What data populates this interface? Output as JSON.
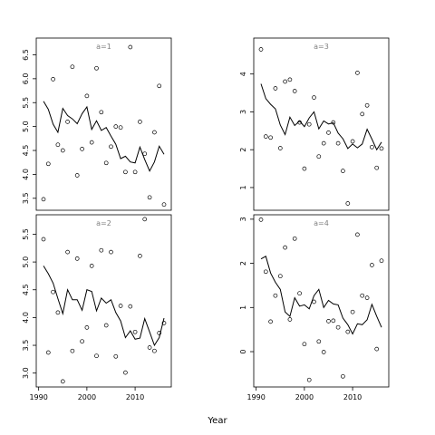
{
  "chart_data": {
    "type": "scatter",
    "xlabel": "Year",
    "panels": [
      {
        "label": "a=1",
        "ylim": [
          3.25,
          6.85
        ],
        "yticks": [
          3.5,
          4.0,
          4.5,
          5.0,
          5.5,
          6.0,
          6.5
        ],
        "ytick_labels": [
          "3.5",
          "4.0",
          "4.5",
          "5.0",
          "5.5",
          "6.0",
          "6.5"
        ],
        "points": [
          [
            1991,
            3.48
          ],
          [
            1992,
            4.22
          ],
          [
            1993,
            5.99
          ],
          [
            1994,
            4.62
          ],
          [
            1995,
            4.5
          ],
          [
            1996,
            5.1
          ],
          [
            1997,
            6.25
          ],
          [
            1998,
            3.98
          ],
          [
            1999,
            4.53
          ],
          [
            2000,
            5.64
          ],
          [
            2001,
            4.67
          ],
          [
            2002,
            6.22
          ],
          [
            2003,
            5.3
          ],
          [
            2004,
            4.24
          ],
          [
            2005,
            4.58
          ],
          [
            2006,
            5.0
          ],
          [
            2007,
            4.98
          ],
          [
            2008,
            4.05
          ],
          [
            2009,
            6.66
          ],
          [
            2010,
            4.05
          ],
          [
            2011,
            5.1
          ],
          [
            2012,
            4.43
          ],
          [
            2013,
            3.52
          ],
          [
            2014,
            4.88
          ],
          [
            2015,
            5.85
          ],
          [
            2016,
            3.37
          ]
        ],
        "line": [
          [
            1991,
            5.53
          ],
          [
            1992,
            5.36
          ],
          [
            1993,
            5.05
          ],
          [
            1994,
            4.88
          ],
          [
            1995,
            5.38
          ],
          [
            1996,
            5.23
          ],
          [
            1997,
            5.16
          ],
          [
            1998,
            5.06
          ],
          [
            1999,
            5.27
          ],
          [
            2000,
            5.41
          ],
          [
            2001,
            4.94
          ],
          [
            2002,
            5.12
          ],
          [
            2003,
            4.92
          ],
          [
            2004,
            4.98
          ],
          [
            2005,
            4.8
          ],
          [
            2006,
            4.63
          ],
          [
            2007,
            4.33
          ],
          [
            2008,
            4.38
          ],
          [
            2009,
            4.26
          ],
          [
            2010,
            4.24
          ],
          [
            2011,
            4.57
          ],
          [
            2012,
            4.31
          ],
          [
            2013,
            4.07
          ],
          [
            2014,
            4.26
          ],
          [
            2015,
            4.59
          ],
          [
            2016,
            4.42
          ]
        ]
      },
      {
        "label": "a=3",
        "ylim": [
          0.4,
          4.95
        ],
        "yticks": [
          1,
          2,
          3,
          4
        ],
        "ytick_labels": [
          "1",
          "2",
          "3",
          "4"
        ],
        "points": [
          [
            1991,
            4.65
          ],
          [
            1992,
            2.35
          ],
          [
            1993,
            2.32
          ],
          [
            1994,
            3.62
          ],
          [
            1995,
            2.04
          ],
          [
            1996,
            3.8
          ],
          [
            1997,
            3.85
          ],
          [
            1998,
            3.55
          ],
          [
            1999,
            2.72
          ],
          [
            2000,
            1.5
          ],
          [
            2001,
            2.67
          ],
          [
            2002,
            3.38
          ],
          [
            2003,
            1.82
          ],
          [
            2004,
            2.17
          ],
          [
            2005,
            2.45
          ],
          [
            2006,
            2.72
          ],
          [
            2007,
            2.17
          ],
          [
            2008,
            1.44
          ],
          [
            2009,
            0.58
          ],
          [
            2010,
            2.22
          ],
          [
            2011,
            4.03
          ],
          [
            2012,
            2.94
          ],
          [
            2013,
            3.17
          ],
          [
            2014,
            2.07
          ],
          [
            2015,
            1.52
          ],
          [
            2016,
            2.03
          ]
        ],
        "line": [
          [
            1991,
            3.74
          ],
          [
            1992,
            3.35
          ],
          [
            1993,
            3.2
          ],
          [
            1994,
            3.08
          ],
          [
            1995,
            2.65
          ],
          [
            1996,
            2.4
          ],
          [
            1997,
            2.86
          ],
          [
            1998,
            2.64
          ],
          [
            1999,
            2.76
          ],
          [
            2000,
            2.61
          ],
          [
            2001,
            2.84
          ],
          [
            2002,
            3.0
          ],
          [
            2003,
            2.55
          ],
          [
            2004,
            2.76
          ],
          [
            2005,
            2.68
          ],
          [
            2006,
            2.71
          ],
          [
            2007,
            2.44
          ],
          [
            2008,
            2.29
          ],
          [
            2009,
            2.03
          ],
          [
            2010,
            2.15
          ],
          [
            2011,
            2.05
          ],
          [
            2012,
            2.15
          ],
          [
            2013,
            2.54
          ],
          [
            2014,
            2.28
          ],
          [
            2015,
            2.0
          ],
          [
            2016,
            2.2
          ]
        ]
      },
      {
        "label": "a=2",
        "ylim": [
          2.75,
          5.85
        ],
        "yticks": [
          3.0,
          3.5,
          4.0,
          4.5,
          5.0,
          5.5
        ],
        "ytick_labels": [
          "3.0",
          "3.5",
          "4.0",
          "4.5",
          "5.0",
          "5.5"
        ],
        "points": [
          [
            1991,
            5.41
          ],
          [
            1992,
            3.37
          ],
          [
            1993,
            4.46
          ],
          [
            1994,
            4.09
          ],
          [
            1995,
            2.85
          ],
          [
            1996,
            5.18
          ],
          [
            1997,
            3.4
          ],
          [
            1998,
            5.06
          ],
          [
            1999,
            3.57
          ],
          [
            2000,
            3.82
          ],
          [
            2001,
            4.93
          ],
          [
            2002,
            3.31
          ],
          [
            2003,
            5.21
          ],
          [
            2004,
            3.86
          ],
          [
            2005,
            5.18
          ],
          [
            2006,
            3.3
          ],
          [
            2007,
            4.21
          ],
          [
            2008,
            3.01
          ],
          [
            2009,
            4.2
          ],
          [
            2010,
            3.74
          ],
          [
            2011,
            5.11
          ],
          [
            2012,
            5.77
          ],
          [
            2013,
            3.46
          ],
          [
            2014,
            3.4
          ],
          [
            2015,
            3.72
          ],
          [
            2016,
            3.9
          ]
        ],
        "line": [
          [
            1991,
            4.93
          ],
          [
            1992,
            4.79
          ],
          [
            1993,
            4.62
          ],
          [
            1994,
            4.34
          ],
          [
            1995,
            4.07
          ],
          [
            1996,
            4.5
          ],
          [
            1997,
            4.32
          ],
          [
            1998,
            4.32
          ],
          [
            1999,
            4.13
          ],
          [
            2000,
            4.5
          ],
          [
            2001,
            4.47
          ],
          [
            2002,
            4.12
          ],
          [
            2003,
            4.35
          ],
          [
            2004,
            4.26
          ],
          [
            2005,
            4.32
          ],
          [
            2006,
            4.09
          ],
          [
            2007,
            3.94
          ],
          [
            2008,
            3.64
          ],
          [
            2009,
            3.76
          ],
          [
            2010,
            3.61
          ],
          [
            2011,
            3.63
          ],
          [
            2012,
            3.98
          ],
          [
            2013,
            3.74
          ],
          [
            2014,
            3.5
          ],
          [
            2015,
            3.64
          ],
          [
            2016,
            3.99
          ]
        ]
      },
      {
        "label": "a=4",
        "ylim": [
          -0.8,
          3.1
        ],
        "yticks": [
          0,
          1,
          2,
          3
        ],
        "ytick_labels": [
          "0",
          "1",
          "2",
          "3"
        ],
        "points": [
          [
            1991,
            2.99
          ],
          [
            1992,
            1.81
          ],
          [
            1993,
            0.68
          ],
          [
            1994,
            1.27
          ],
          [
            1995,
            1.71
          ],
          [
            1996,
            2.36
          ],
          [
            1997,
            0.73
          ],
          [
            1998,
            2.56
          ],
          [
            1999,
            1.32
          ],
          [
            2000,
            0.17
          ],
          [
            2001,
            -0.64
          ],
          [
            2002,
            1.13
          ],
          [
            2003,
            0.23
          ],
          [
            2004,
            -0.01
          ],
          [
            2005,
            0.69
          ],
          [
            2006,
            0.7
          ],
          [
            2007,
            0.55
          ],
          [
            2008,
            -0.56
          ],
          [
            2009,
            0.45
          ],
          [
            2010,
            0.9
          ],
          [
            2011,
            2.65
          ],
          [
            2012,
            1.27
          ],
          [
            2013,
            1.22
          ],
          [
            2014,
            1.96
          ],
          [
            2015,
            0.06
          ],
          [
            2016,
            2.06
          ]
        ],
        "line": [
          [
            1991,
            2.1
          ],
          [
            1992,
            2.16
          ],
          [
            1993,
            1.78
          ],
          [
            1994,
            1.57
          ],
          [
            1995,
            1.41
          ],
          [
            1996,
            0.9
          ],
          [
            1997,
            0.8
          ],
          [
            1998,
            1.22
          ],
          [
            1999,
            1.03
          ],
          [
            2000,
            1.06
          ],
          [
            2001,
            0.97
          ],
          [
            2002,
            1.27
          ],
          [
            2003,
            1.41
          ],
          [
            2004,
            1.0
          ],
          [
            2005,
            1.16
          ],
          [
            2006,
            1.08
          ],
          [
            2007,
            1.06
          ],
          [
            2008,
            0.76
          ],
          [
            2009,
            0.61
          ],
          [
            2010,
            0.4
          ],
          [
            2011,
            0.63
          ],
          [
            2012,
            0.61
          ],
          [
            2013,
            0.72
          ],
          [
            2014,
            1.07
          ],
          [
            2015,
            0.8
          ],
          [
            2016,
            0.55
          ]
        ]
      }
    ],
    "xlim": [
      1989.5,
      2017.5
    ],
    "xticks": [
      1990,
      2000,
      2010
    ],
    "xtick_labels": [
      "1990",
      "2000",
      "2010"
    ]
  }
}
